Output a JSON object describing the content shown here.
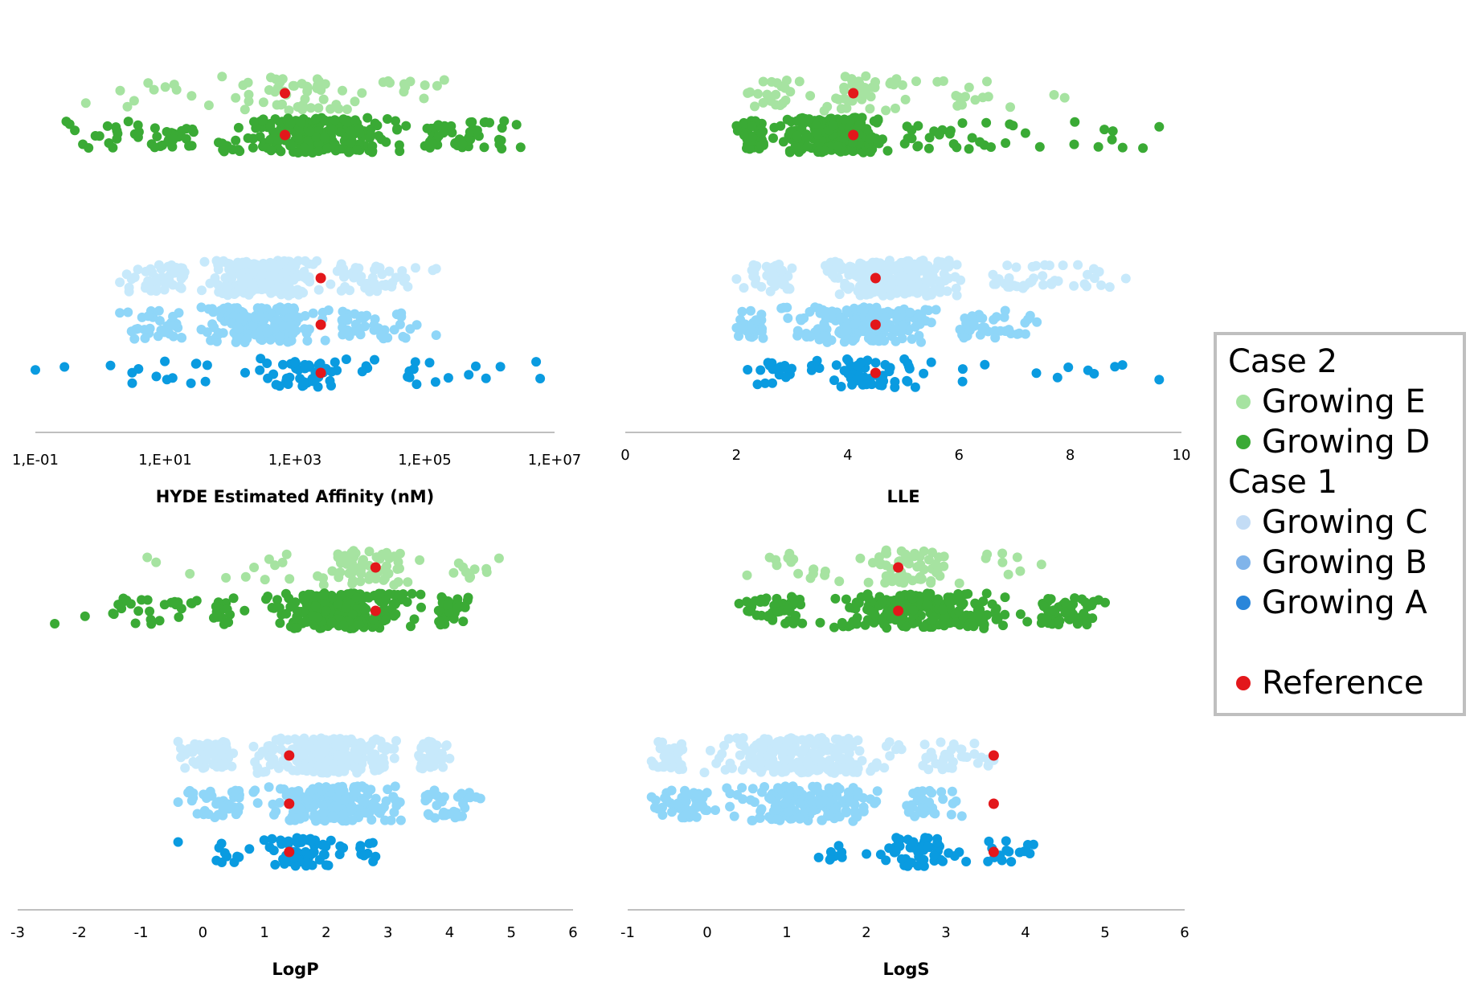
{
  "colors": {
    "Growing E": "#a6e3a1",
    "Growing D": "#3aaa35",
    "Growing C": "#c7e9fb",
    "Growing B": "#8fd6f8",
    "Growing A": "#0a9be0",
    "Reference": "#e3171b"
  },
  "legend": {
    "case2": "Case 2",
    "case1": "Case 1",
    "items": [
      {
        "label": "Growing E",
        "color": "#a6e3a1"
      },
      {
        "label": "Growing D",
        "color": "#3aaa35"
      },
      {
        "label": "Growing C",
        "color": "#c3dcf5"
      },
      {
        "label": "Growing B",
        "color": "#80b4ea"
      },
      {
        "label": "Growing A",
        "color": "#2a86da"
      },
      {
        "label": "Reference",
        "color": "#e3171b"
      }
    ]
  },
  "chart_data": [
    {
      "type": "scatter",
      "xlabel": "HYDE Estimated Affinity (nM)",
      "xscale": "log",
      "xlim": [
        0.1,
        10000000
      ],
      "ticks": [
        0.1,
        10,
        1000,
        100000,
        10000000
      ],
      "tick_labels": [
        "1,E-01",
        "1,E+01",
        "1,E+03",
        "1,E+05",
        "1,E+07"
      ],
      "series": [
        {
          "group": "Growing E",
          "min": 0.6,
          "q1": 50,
          "q3": 20000,
          "max": 200000,
          "n": 70
        },
        {
          "group": "Growing D",
          "min": 0.3,
          "q1": 30,
          "q3": 100000,
          "max": 3000000,
          "n": 320
        },
        {
          "group": "Growing C",
          "min": 2,
          "q1": 20,
          "q3": 5000,
          "max": 150000,
          "n": 300
        },
        {
          "group": "Growing B",
          "min": 2,
          "q1": 20,
          "q3": 5000,
          "max": 150000,
          "n": 260
        },
        {
          "group": "Growing A",
          "min": 0.1,
          "q1": 50,
          "q3": 30000,
          "max": 6000000,
          "n": 80
        }
      ],
      "reference": {
        "Growing E": 700,
        "Growing D": 700,
        "Growing C": 2500,
        "Growing B": 2500,
        "Growing A": 2500
      }
    },
    {
      "type": "scatter",
      "xlabel": "LLE",
      "xscale": "linear",
      "xlim": [
        0,
        10
      ],
      "ticks": [
        0,
        2,
        4,
        6,
        8,
        10
      ],
      "tick_labels": [
        "0",
        "2",
        "4",
        "6",
        "8",
        "10"
      ],
      "series": [
        {
          "group": "Growing E",
          "min": 2.2,
          "q1": 3.0,
          "q3": 5.5,
          "max": 7.9,
          "n": 80
        },
        {
          "group": "Growing D",
          "min": 2.0,
          "q1": 2.5,
          "q3": 5.0,
          "max": 9.6,
          "n": 320
        },
        {
          "group": "Growing C",
          "min": 2.0,
          "q1": 3.0,
          "q3": 6.5,
          "max": 9.0,
          "n": 300
        },
        {
          "group": "Growing B",
          "min": 2.0,
          "q1": 2.5,
          "q3": 6.0,
          "max": 7.4,
          "n": 260
        },
        {
          "group": "Growing A",
          "min": 2.2,
          "q1": 3.0,
          "q3": 5.8,
          "max": 9.6,
          "n": 80
        }
      ],
      "reference": {
        "Growing E": 4.1,
        "Growing D": 4.1,
        "Growing C": 4.5,
        "Growing B": 4.5,
        "Growing A": 4.5
      }
    },
    {
      "type": "scatter",
      "xlabel": "LogP",
      "xscale": "linear",
      "xlim": [
        -3,
        6
      ],
      "ticks": [
        -3,
        -2,
        -1,
        0,
        1,
        2,
        3,
        4,
        5,
        6
      ],
      "tick_labels": [
        "-3",
        "-2",
        "-1",
        "0",
        "1",
        "2",
        "3",
        "4",
        "5",
        "6"
      ],
      "series": [
        {
          "group": "Growing E",
          "min": -0.9,
          "q1": 1.5,
          "q3": 3.8,
          "max": 4.8,
          "n": 80
        },
        {
          "group": "Growing D",
          "min": -2.4,
          "q1": 0.5,
          "q3": 3.8,
          "max": 4.3,
          "n": 320
        },
        {
          "group": "Growing C",
          "min": -0.4,
          "q1": 0.5,
          "q3": 3.5,
          "max": 4.0,
          "n": 300
        },
        {
          "group": "Growing B",
          "min": -0.4,
          "q1": 0.6,
          "q3": 3.6,
          "max": 4.5,
          "n": 260
        },
        {
          "group": "Growing A",
          "min": -0.4,
          "q1": 0.8,
          "q3": 2.5,
          "max": 2.8,
          "n": 80
        }
      ],
      "reference": {
        "Growing E": 2.8,
        "Growing D": 2.8,
        "Growing C": 1.4,
        "Growing B": 1.4,
        "Growing A": 1.4
      }
    },
    {
      "type": "scatter",
      "xlabel": "LogS",
      "xscale": "linear",
      "xlim": [
        -1,
        6
      ],
      "ticks": [
        -1,
        0,
        1,
        2,
        3,
        4,
        5,
        6
      ],
      "tick_labels": [
        "-1",
        "0",
        "1",
        "2",
        "3",
        "4",
        "5",
        "6"
      ],
      "series": [
        {
          "group": "Growing E",
          "min": 0.5,
          "q1": 1.5,
          "q3": 3.5,
          "max": 4.2,
          "n": 80
        },
        {
          "group": "Growing D",
          "min": 0.4,
          "q1": 1.2,
          "q3": 4.2,
          "max": 5.0,
          "n": 320
        },
        {
          "group": "Growing C",
          "min": -0.7,
          "q1": -0.3,
          "q3": 2.7,
          "max": 3.6,
          "n": 300
        },
        {
          "group": "Growing B",
          "min": -0.7,
          "q1": 0.0,
          "q3": 2.5,
          "max": 3.2,
          "n": 260
        },
        {
          "group": "Growing A",
          "min": 1.4,
          "q1": 1.8,
          "q3": 3.5,
          "max": 4.1,
          "n": 80
        }
      ],
      "reference": {
        "Growing E": 2.4,
        "Growing D": 2.4,
        "Growing C": 3.6,
        "Growing B": 3.6,
        "Growing A": 3.6
      }
    }
  ]
}
